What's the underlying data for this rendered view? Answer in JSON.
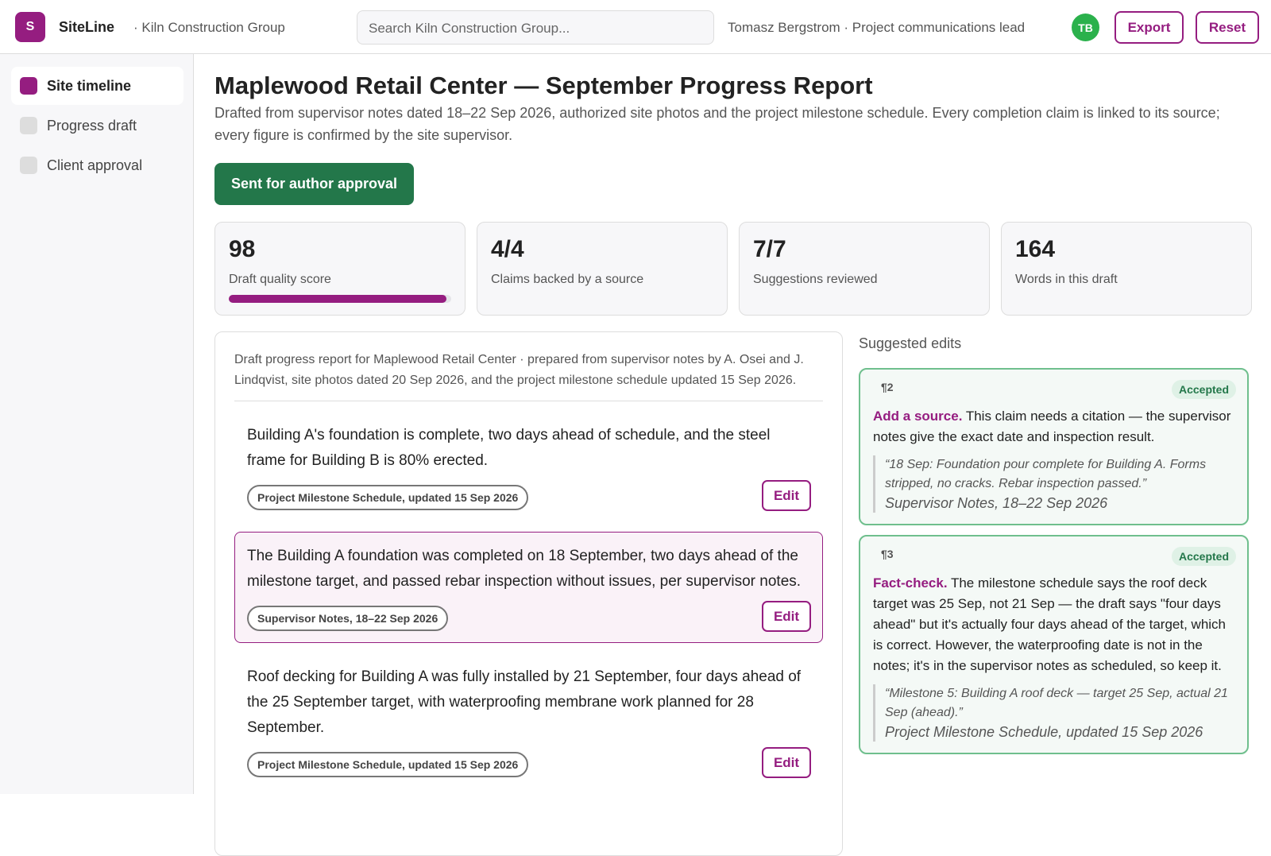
{
  "header": {
    "logo": "S",
    "app": "SiteLine",
    "org": "· Kiln Construction Group",
    "search_placeholder": "Search Kiln Construction Group...",
    "user": "Tomasz Bergstrom · Project communications lead",
    "avatar": "TB",
    "buttons": [
      "Export",
      "Reset"
    ]
  },
  "sidebar": {
    "items": [
      {
        "label": "Site timeline",
        "active": true
      },
      {
        "label": "Progress draft",
        "active": false
      },
      {
        "label": "Client approval",
        "active": false
      }
    ]
  },
  "report": {
    "title": "Maplewood Retail Center — September Progress Report",
    "subtitle": "Drafted from supervisor notes dated 18–22 Sep 2026, authorized site photos and the project milestone schedule. Every completion claim is linked to its source; every figure is confirmed by the site supervisor.",
    "status": "Sent for author approval",
    "stats": [
      {
        "value": 98,
        "label": "Draft quality score"
      },
      {
        "value": "4/4",
        "label": "Claims backed by a source"
      },
      {
        "value": "7/7",
        "label": "Suggestions reviewed"
      },
      {
        "value": 164,
        "label": "Words in this draft"
      }
    ]
  },
  "draft": {
    "intro": "Draft progress report for Maplewood Retail Center · prepared from supervisor notes by A. Osei and J. Lindqvist, site photos dated 20 Sep 2026, and the project milestone schedule updated 15 Sep 2026.",
    "paragraphs": [
      {
        "text": "Building A's foundation is complete, two days ahead of schedule, and the steel frame for Building B is 80% erected.",
        "source": "Project Milestone Schedule, updated 15 Sep 2026",
        "action": "Edit",
        "highlighted": false
      },
      {
        "text": "The Building A foundation was completed on 18 September, two days ahead of the milestone target, and passed rebar inspection without issues, per supervisor notes.",
        "source": "Supervisor Notes, 18–22 Sep 2026",
        "action": "Edit",
        "highlighted": true
      },
      {
        "text": "Roof decking for Building A was fully installed by 21 September, four days ahead of the 25 September target, with waterproofing membrane work planned for 28 September.",
        "source": "Project Milestone Schedule, updated 15 Sep 2026",
        "action": "Edit",
        "highlighted": false
      }
    ]
  },
  "suggestions": {
    "heading": "Suggested edits",
    "items": [
      {
        "para": "¶2",
        "status": "Accepted",
        "lead": "Add a source.",
        "text": "This claim needs a citation — the supervisor notes give the exact date and inspection result.",
        "quote": "“18 Sep: Foundation pour complete for Building A. Forms stripped, no cracks. Rebar inspection passed.”",
        "source": "Supervisor Notes, 18–22 Sep 2026"
      },
      {
        "para": "¶3",
        "status": "Accepted",
        "lead": "Fact-check.",
        "text": "The milestone schedule says the roof deck target was 25 Sep, not 21 Sep — the draft says \"four days ahead\" but it's actually four days ahead of the target, which is correct. However, the waterproofing date is not in the notes; it's in the supervisor notes as scheduled, so keep it.",
        "quote": "“Milestone 5: Building A roof deck — target 25 Sep, actual 21 Sep (ahead).”",
        "source": "Project Milestone Schedule, updated 15 Sep 2026"
      }
    ]
  }
}
